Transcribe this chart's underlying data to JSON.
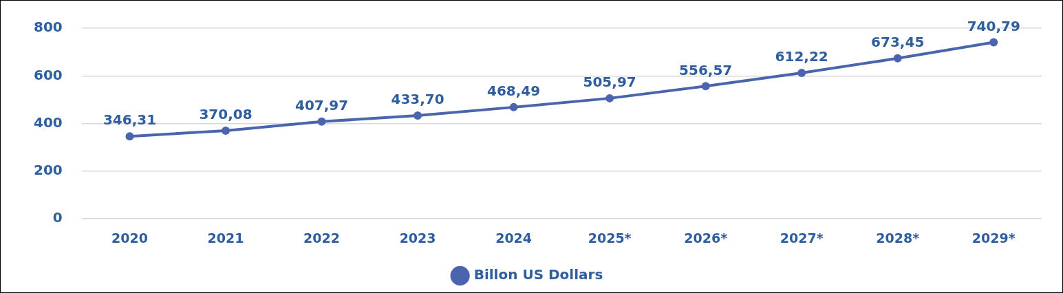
{
  "chart_data": {
    "type": "line",
    "categories": [
      "2020",
      "2021",
      "2022",
      "2023",
      "2024",
      "2025*",
      "2026*",
      "2027*",
      "2028*",
      "2029*"
    ],
    "series": [
      {
        "name": "Billon US Dollars",
        "color": "#4a64ad",
        "values": [
          346.31,
          370.08,
          407.97,
          433.7,
          468.49,
          505.97,
          556.57,
          612.22,
          673.45,
          740.79
        ],
        "value_labels": [
          "346,31",
          "370,08",
          "407,97",
          "433,70",
          "468,49",
          "505,97",
          "556,57",
          "612,22",
          "673,45",
          "740,79"
        ]
      }
    ],
    "ylim": [
      0,
      800
    ],
    "yticks": [
      0,
      200,
      400,
      600,
      800
    ],
    "grid": "y",
    "legend": "bottom",
    "marker": "circle",
    "line_style": "solid"
  }
}
